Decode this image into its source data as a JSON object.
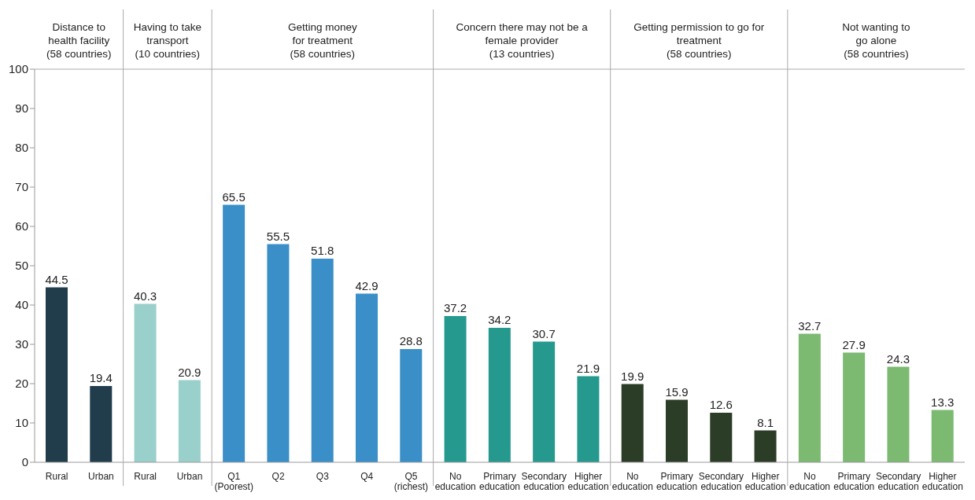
{
  "chart_data": {
    "type": "bar",
    "categories": [
      "Rural",
      "Urban",
      "Rural",
      "Urban",
      "Q1\n(Poorest)",
      "Q2",
      "Q3",
      "Q4",
      "Q5\n(richest)",
      "No\neducation",
      "Primary\neducation",
      "Secondary\neducation",
      "Higher\neducation",
      "No\neducation",
      "Primary\neducation",
      "Secondary\neducation",
      "Higher\neducation",
      "No\neducation",
      "Primary\neducation",
      "Secondary\neducation",
      "Higher\neducation"
    ],
    "series": [
      {
        "color": "#213d4c",
        "values": [
          44.5,
          19.4,
          null,
          null,
          null,
          null,
          null,
          null,
          null,
          null,
          null,
          null,
          null,
          null,
          null,
          null,
          null,
          null,
          null,
          null,
          null
        ]
      },
      {
        "color": "#99d0cb",
        "values": [
          null,
          null,
          40.3,
          20.9,
          null,
          null,
          null,
          null,
          null,
          null,
          null,
          null,
          null,
          null,
          null,
          null,
          null,
          null,
          null,
          null,
          null
        ]
      },
      {
        "color": "#3a8fc8",
        "values": [
          null,
          null,
          null,
          null,
          65.5,
          55.5,
          51.8,
          42.9,
          28.8,
          null,
          null,
          null,
          null,
          null,
          null,
          null,
          null,
          null,
          null,
          null,
          null
        ]
      },
      {
        "color": "#26998f",
        "values": [
          null,
          null,
          null,
          null,
          null,
          null,
          null,
          null,
          null,
          37.2,
          34.2,
          30.7,
          21.9,
          null,
          null,
          null,
          null,
          null,
          null,
          null,
          null
        ]
      },
      {
        "color": "#2c3d27",
        "values": [
          null,
          null,
          null,
          null,
          null,
          null,
          null,
          null,
          null,
          null,
          null,
          null,
          null,
          19.9,
          15.9,
          12.6,
          8.1,
          null,
          null,
          null,
          null
        ]
      },
      {
        "color": "#7cba72",
        "values": [
          null,
          null,
          null,
          null,
          null,
          null,
          null,
          null,
          null,
          null,
          null,
          null,
          null,
          null,
          null,
          null,
          null,
          32.7,
          27.9,
          24.3,
          13.3
        ]
      }
    ],
    "annotations": [
      "Distance to\nhealth facility\n(58 countries)",
      "Having to take\ntransport\n(10 countries)",
      "Getting money\nfor treatment\n(58 countries)",
      "Concern there may not be a\nfemale provider\n(13 countries)",
      "Getting permission to go for\ntreatment\n(58 countries)",
      "Not wanting to\ngo alone\n(58 countries)"
    ],
    "ylim": [
      0,
      100
    ],
    "yticks": [
      0,
      10,
      20,
      30,
      40,
      50,
      60,
      70,
      80,
      90,
      100
    ],
    "data_labels": true
  }
}
